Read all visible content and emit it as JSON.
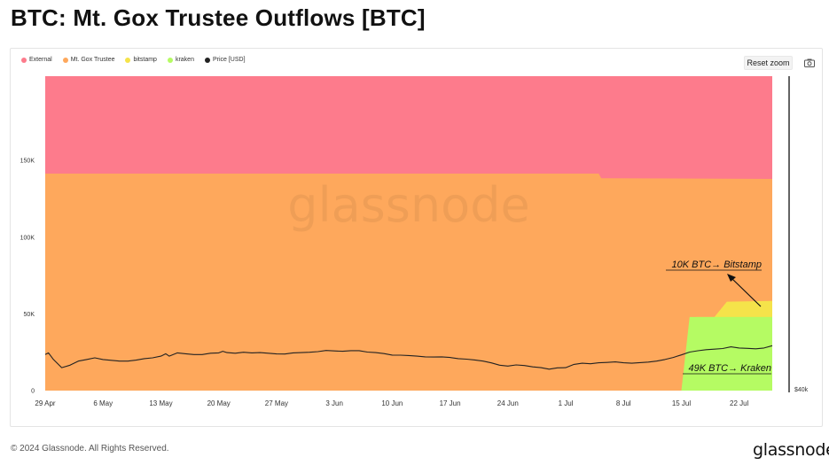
{
  "title": "BTC: Mt. Gox Trustee Outflows [BTC]",
  "reset_zoom_label": "Reset zoom",
  "camera_icon": "camera-icon",
  "watermark": "glassnode",
  "footer": {
    "copyright": "© 2024 Glassnode. All Rights Reserved.",
    "brand": "glassnode"
  },
  "colors": {
    "external": "#fd7b8c",
    "mt_gox_trustee": "#fea85c",
    "bitstamp": "#f5e34a",
    "kraken": "#b5fb63",
    "price": "#222222"
  },
  "chart_data": {
    "type": "area",
    "title": "BTC: Mt. Gox Trustee Outflows [BTC]",
    "legend": [
      {
        "name": "External",
        "color": "#fd7b8c"
      },
      {
        "name": "Mt. Gox Trustee",
        "color": "#fea85c"
      },
      {
        "name": "bitstamp",
        "color": "#f5e34a"
      },
      {
        "name": "kraken",
        "color": "#b5fb63"
      },
      {
        "name": "Price [USD]",
        "color": "#222222"
      }
    ],
    "legend_position": "top-left",
    "grid": false,
    "x_tick_labels": [
      "29 Apr",
      "6 May",
      "13 May",
      "20 May",
      "27 May",
      "3 Jun",
      "10 Jun",
      "17 Jun",
      "24 Jun",
      "1 Jul",
      "8 Jul",
      "15 Jul",
      "22 Jul"
    ],
    "x_range": [
      0,
      88
    ],
    "y_ticks": [
      0,
      50000,
      100000,
      150000
    ],
    "y_tick_labels": [
      "0",
      "50K",
      "100K",
      "150K"
    ],
    "ylim": [
      0,
      205000
    ],
    "right_axis_labels": [
      "$40k"
    ],
    "series": [
      {
        "name": "External",
        "points": [
          [
            0,
            205000
          ],
          [
            88,
            205000
          ]
        ]
      },
      {
        "name": "Mt. Gox Trustee",
        "points": [
          [
            0,
            141500
          ],
          [
            67,
            141500
          ],
          [
            67.3,
            138500
          ],
          [
            88,
            138000
          ]
        ]
      },
      {
        "name": "bitstamp",
        "points": [
          [
            0,
            0
          ],
          [
            78.8,
            0
          ],
          [
            78.8,
            48000
          ],
          [
            81,
            48000
          ],
          [
            82.5,
            58000
          ],
          [
            88,
            58500
          ]
        ]
      },
      {
        "name": "kraken",
        "points": [
          [
            0,
            0
          ],
          [
            77,
            0
          ],
          [
            78,
            48000
          ],
          [
            88,
            48000
          ]
        ]
      },
      {
        "name": "Price [USD]",
        "points": [
          [
            0,
            62000
          ],
          [
            0.4,
            63000
          ],
          [
            1,
            59000
          ],
          [
            2,
            54000
          ],
          [
            3,
            55500
          ],
          [
            4,
            58000
          ],
          [
            5,
            59000
          ],
          [
            6,
            60000
          ],
          [
            7,
            59000
          ],
          [
            8,
            58500
          ],
          [
            9,
            58000
          ],
          [
            10,
            58000
          ],
          [
            11,
            58600
          ],
          [
            12,
            59500
          ],
          [
            13,
            60000
          ],
          [
            14,
            61000
          ],
          [
            14.6,
            62500
          ],
          [
            15,
            61000
          ],
          [
            16,
            63000
          ],
          [
            17,
            62500
          ],
          [
            18,
            62000
          ],
          [
            19,
            62000
          ],
          [
            20,
            62800
          ],
          [
            21,
            63000
          ],
          [
            21.5,
            64000
          ],
          [
            22,
            63200
          ],
          [
            23,
            62800
          ],
          [
            24,
            63400
          ],
          [
            25,
            63000
          ],
          [
            26,
            63200
          ],
          [
            27,
            62800
          ],
          [
            28,
            62400
          ],
          [
            29,
            62300
          ],
          [
            30,
            63000
          ],
          [
            31,
            63200
          ],
          [
            32,
            63400
          ],
          [
            33,
            63800
          ],
          [
            34,
            64500
          ],
          [
            35,
            64200
          ],
          [
            36,
            64000
          ],
          [
            37,
            64400
          ],
          [
            38,
            64400
          ],
          [
            39,
            63500
          ],
          [
            40,
            63200
          ],
          [
            41,
            62600
          ],
          [
            42,
            61700
          ],
          [
            43,
            61600
          ],
          [
            44,
            61400
          ],
          [
            45,
            61000
          ],
          [
            46,
            60600
          ],
          [
            47,
            60500
          ],
          [
            48,
            60600
          ],
          [
            49,
            60200
          ],
          [
            50,
            59500
          ],
          [
            51,
            59200
          ],
          [
            52,
            58700
          ],
          [
            53,
            58000
          ],
          [
            54,
            56900
          ],
          [
            55,
            55500
          ],
          [
            56,
            55000
          ],
          [
            57,
            55700
          ],
          [
            58,
            55300
          ],
          [
            59,
            54500
          ],
          [
            60,
            54000
          ],
          [
            61,
            53100
          ],
          [
            62,
            53900
          ],
          [
            63,
            54000
          ],
          [
            64,
            56000
          ],
          [
            65,
            56700
          ],
          [
            66,
            56400
          ],
          [
            67,
            57000
          ],
          [
            68,
            57200
          ],
          [
            69,
            57500
          ],
          [
            70,
            57000
          ],
          [
            71,
            56700
          ],
          [
            72,
            57100
          ],
          [
            73,
            57400
          ],
          [
            74,
            58000
          ],
          [
            75,
            59000
          ],
          [
            76,
            60200
          ],
          [
            77,
            61800
          ],
          [
            78,
            63500
          ],
          [
            79,
            64300
          ],
          [
            80,
            65000
          ],
          [
            81,
            65300
          ],
          [
            82,
            65700
          ],
          [
            83,
            66700
          ],
          [
            84,
            66000
          ],
          [
            85,
            65800
          ],
          [
            86,
            65500
          ],
          [
            87,
            66000
          ],
          [
            88,
            67400
          ]
        ]
      }
    ],
    "annotations": [
      {
        "text": "10K BTC→ Bitstamp"
      },
      {
        "text": "49K BTC→ Kraken"
      }
    ]
  }
}
